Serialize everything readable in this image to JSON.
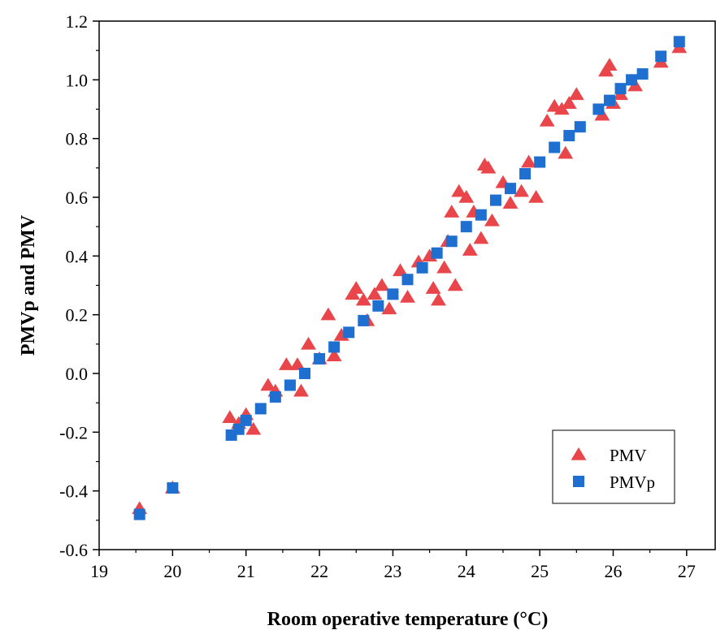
{
  "chart_data": {
    "type": "scatter",
    "title": "",
    "xlabel": "Room operative temperature (°C)",
    "ylabel": "PMVp and PMV",
    "xlim": [
      19,
      27.4
    ],
    "ylim": [
      -0.6,
      1.2
    ],
    "xticks": [
      "19",
      "20",
      "21",
      "22",
      "23",
      "24",
      "25",
      "26",
      "27"
    ],
    "yticks": [
      "-0.6",
      "-0.4",
      "-0.2",
      "0.0",
      "0.2",
      "0.4",
      "0.6",
      "0.8",
      "1.0",
      "1.2"
    ],
    "legend_position": "bottom-right",
    "grid": false,
    "series": [
      {
        "name": "PMV",
        "marker": "triangle",
        "color": "#e8464a",
        "points": [
          [
            19.55,
            -0.46
          ],
          [
            20.0,
            -0.39
          ],
          [
            20.78,
            -0.15
          ],
          [
            20.9,
            -0.17
          ],
          [
            21.0,
            -0.14
          ],
          [
            21.1,
            -0.19
          ],
          [
            21.3,
            -0.04
          ],
          [
            21.4,
            -0.06
          ],
          [
            21.55,
            0.03
          ],
          [
            21.7,
            0.03
          ],
          [
            21.75,
            -0.06
          ],
          [
            21.85,
            0.1
          ],
          [
            22.0,
            0.05
          ],
          [
            22.12,
            0.2
          ],
          [
            22.2,
            0.06
          ],
          [
            22.3,
            0.13
          ],
          [
            22.45,
            0.27
          ],
          [
            22.5,
            0.29
          ],
          [
            22.6,
            0.25
          ],
          [
            22.65,
            0.18
          ],
          [
            22.75,
            0.27
          ],
          [
            22.85,
            0.3
          ],
          [
            22.95,
            0.22
          ],
          [
            23.1,
            0.35
          ],
          [
            23.2,
            0.26
          ],
          [
            23.35,
            0.38
          ],
          [
            23.5,
            0.4
          ],
          [
            23.55,
            0.29
          ],
          [
            23.62,
            0.25
          ],
          [
            23.7,
            0.36
          ],
          [
            23.75,
            0.45
          ],
          [
            23.8,
            0.55
          ],
          [
            23.85,
            0.3
          ],
          [
            23.9,
            0.62
          ],
          [
            24.0,
            0.6
          ],
          [
            24.05,
            0.42
          ],
          [
            24.1,
            0.55
          ],
          [
            24.2,
            0.46
          ],
          [
            24.25,
            0.71
          ],
          [
            24.3,
            0.7
          ],
          [
            24.35,
            0.52
          ],
          [
            24.5,
            0.65
          ],
          [
            24.6,
            0.58
          ],
          [
            24.75,
            0.62
          ],
          [
            24.85,
            0.72
          ],
          [
            24.95,
            0.6
          ],
          [
            25.1,
            0.86
          ],
          [
            25.2,
            0.91
          ],
          [
            25.3,
            0.9
          ],
          [
            25.35,
            0.75
          ],
          [
            25.4,
            0.92
          ],
          [
            25.5,
            0.95
          ],
          [
            25.85,
            0.88
          ],
          [
            25.9,
            1.03
          ],
          [
            25.95,
            1.05
          ],
          [
            26.0,
            0.92
          ],
          [
            26.1,
            0.95
          ],
          [
            26.3,
            0.98
          ],
          [
            26.65,
            1.06
          ],
          [
            26.9,
            1.11
          ]
        ]
      },
      {
        "name": "PMVp",
        "marker": "square",
        "color": "#1f6fd1",
        "points": [
          [
            19.55,
            -0.48
          ],
          [
            20.0,
            -0.39
          ],
          [
            20.8,
            -0.21
          ],
          [
            20.9,
            -0.19
          ],
          [
            21.0,
            -0.16
          ],
          [
            21.2,
            -0.12
          ],
          [
            21.4,
            -0.08
          ],
          [
            21.6,
            -0.04
          ],
          [
            21.8,
            0.0
          ],
          [
            22.0,
            0.05
          ],
          [
            22.2,
            0.09
          ],
          [
            22.4,
            0.14
          ],
          [
            22.6,
            0.18
          ],
          [
            22.8,
            0.23
          ],
          [
            23.0,
            0.27
          ],
          [
            23.2,
            0.32
          ],
          [
            23.4,
            0.36
          ],
          [
            23.6,
            0.41
          ],
          [
            23.8,
            0.45
          ],
          [
            24.0,
            0.5
          ],
          [
            24.2,
            0.54
          ],
          [
            24.4,
            0.59
          ],
          [
            24.6,
            0.63
          ],
          [
            24.8,
            0.68
          ],
          [
            25.0,
            0.72
          ],
          [
            25.2,
            0.77
          ],
          [
            25.4,
            0.81
          ],
          [
            25.55,
            0.84
          ],
          [
            25.8,
            0.9
          ],
          [
            25.95,
            0.93
          ],
          [
            26.1,
            0.97
          ],
          [
            26.25,
            1.0
          ],
          [
            26.4,
            1.02
          ],
          [
            26.65,
            1.08
          ],
          [
            26.9,
            1.13
          ]
        ]
      }
    ]
  }
}
